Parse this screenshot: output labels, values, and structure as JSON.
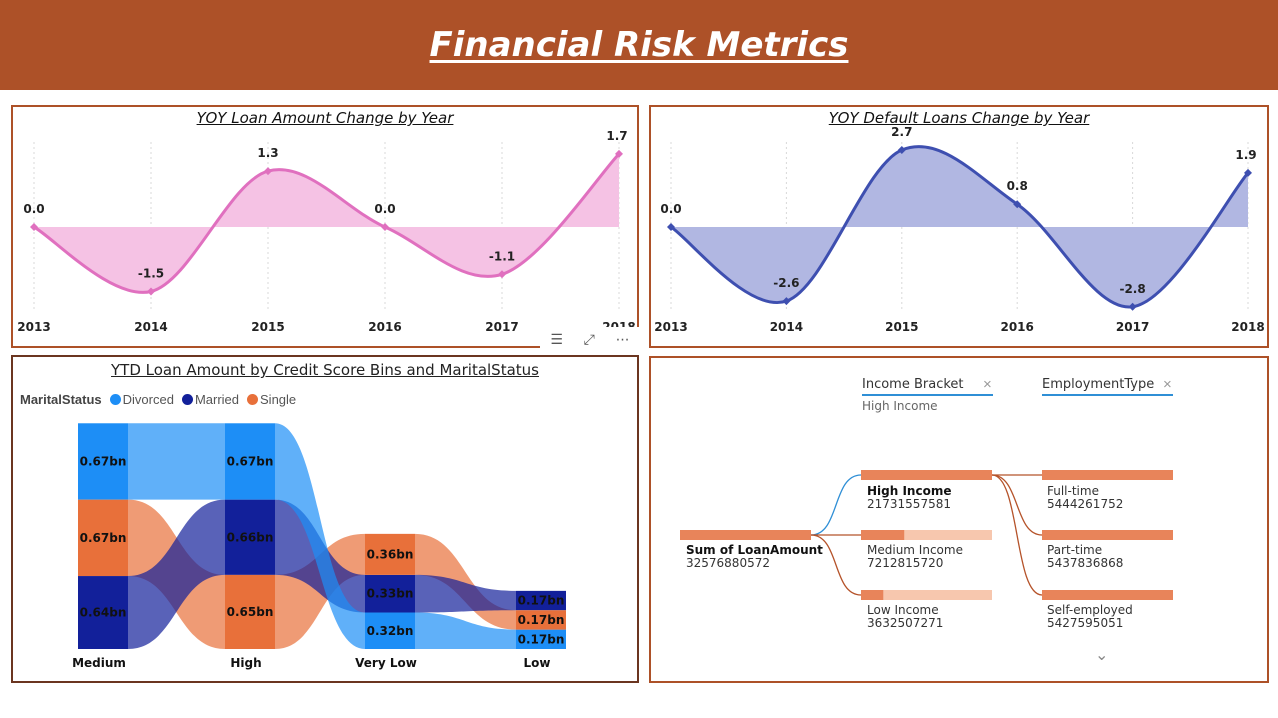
{
  "header": {
    "title": "Financial Risk Metrics"
  },
  "colors": {
    "header_bg": "#ad5128",
    "pink": "#e070bf",
    "pink_fill": "#f5c2e4",
    "blue": "#3e4fb0",
    "blue_fill": "#b1b7e2",
    "divorced": "#1d8ef6",
    "married": "#12209a",
    "single": "#e8703a"
  },
  "chart_data": [
    {
      "type": "area",
      "title": "YOY Loan Amount Change by Year",
      "x": [
        "2013",
        "2014",
        "2015",
        "2016",
        "2017",
        "2018"
      ],
      "values": [
        0.0,
        -1.5,
        1.3,
        0.0,
        -1.1,
        1.7
      ],
      "labels": [
        "0.0",
        "-1.5",
        "1.3",
        "0.0",
        "-1.1",
        "1.7"
      ]
    },
    {
      "type": "area",
      "title": "YOY Default Loans Change by Year",
      "x": [
        "2013",
        "2014",
        "2015",
        "2016",
        "2017",
        "2018"
      ],
      "values": [
        0.0,
        -2.6,
        2.7,
        0.8,
        -2.8,
        1.9
      ],
      "labels": [
        "0.0",
        "-2.6",
        "2.7",
        "0.8",
        "-2.8",
        "1.9"
      ]
    },
    {
      "type": "bar",
      "title": "YTD Loan Amount by Credit Score Bins and MaritalStatus",
      "legend_title": "MaritalStatus",
      "categories": [
        "Medium",
        "High",
        "Very Low",
        "Low"
      ],
      "series": [
        {
          "name": "Divorced",
          "values": [
            0.67,
            0.67,
            0.32,
            0.17
          ],
          "labels": [
            "0.67bn",
            "0.67bn",
            "0.32bn",
            "0.17bn"
          ]
        },
        {
          "name": "Married",
          "values": [
            0.64,
            0.66,
            0.33,
            0.17
          ],
          "labels": [
            "0.64bn",
            "0.66bn",
            "0.33bn",
            "0.17bn"
          ]
        },
        {
          "name": "Single",
          "values": [
            0.67,
            0.65,
            0.36,
            0.17
          ],
          "labels": [
            "0.67bn",
            "0.65bn",
            "0.36bn",
            "0.17bn"
          ]
        }
      ]
    }
  ],
  "toolbar": {
    "filter_icon": "filter-icon",
    "focus_icon": "focus-mode-icon",
    "more_icon": "more-options-icon"
  },
  "tree": {
    "levels": [
      {
        "header": "Income Bracket",
        "sub": "High Income"
      },
      {
        "header": "EmploymentType",
        "sub": ""
      }
    ],
    "root": {
      "label": "Sum of LoanAmount",
      "value": "32576880572",
      "fraction": 1.0
    },
    "income": [
      {
        "label": "High Income",
        "value": "21731557581",
        "fraction": 1.0
      },
      {
        "label": "Medium Income",
        "value": "7212815720",
        "fraction": 0.33
      },
      {
        "label": "Low Income",
        "value": "3632507271",
        "fraction": 0.17
      }
    ],
    "employment": [
      {
        "label": "Full-time",
        "value": "5444261752",
        "fraction": 1.0
      },
      {
        "label": "Part-time",
        "value": "5437836868",
        "fraction": 1.0
      },
      {
        "label": "Self-employed",
        "value": "5427595051",
        "fraction": 1.0
      }
    ]
  }
}
